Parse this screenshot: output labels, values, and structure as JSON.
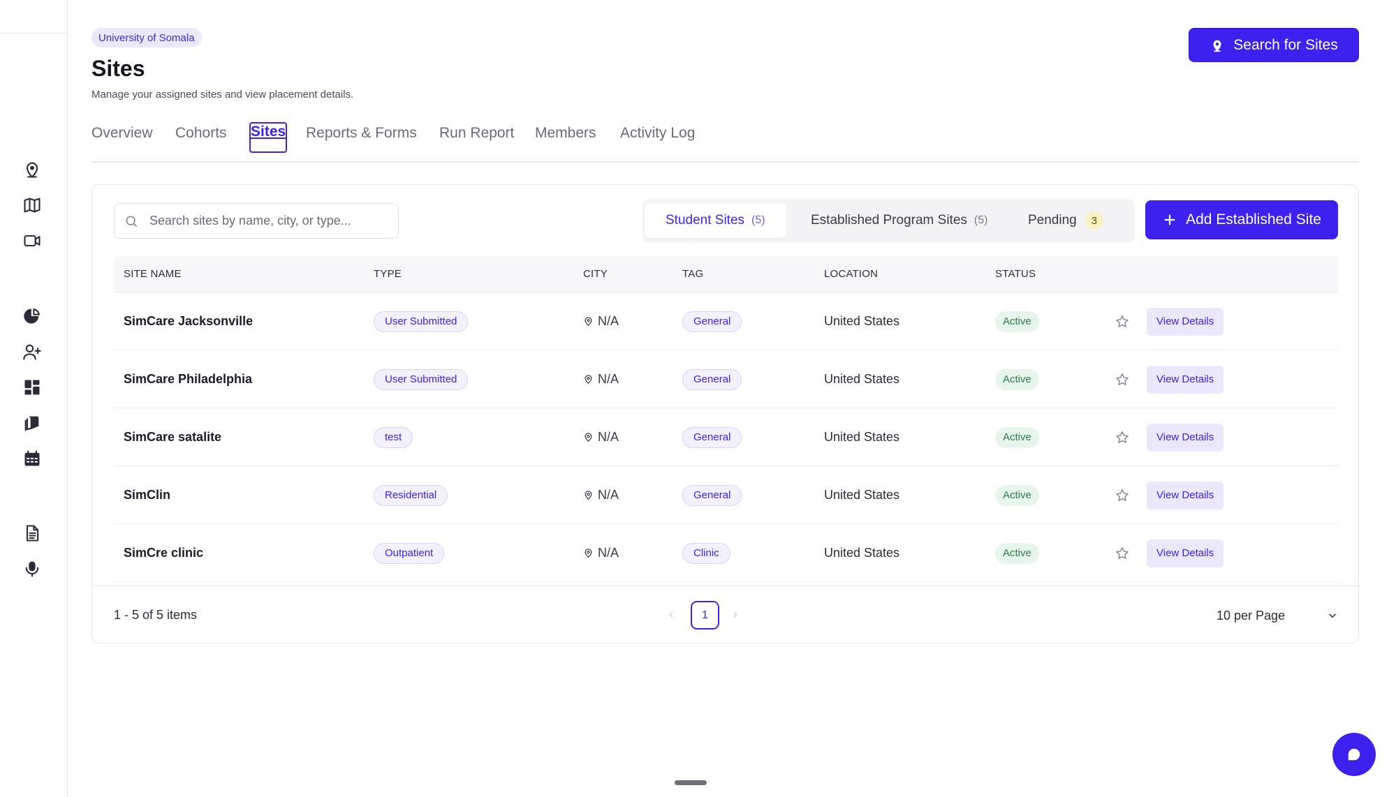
{
  "header": {
    "org_badge": "University of Somala",
    "title": "Sites",
    "subtitle": "Manage your assigned sites and view placement details.",
    "search_sites_label": "Search for Sites"
  },
  "tabs": [
    {
      "label": "Overview"
    },
    {
      "label": "Cohorts"
    },
    {
      "label": "Sites",
      "active": true
    },
    {
      "label": "Reports & Forms"
    },
    {
      "label": "Run Report"
    },
    {
      "label": "Members"
    },
    {
      "label": "Activity Log"
    }
  ],
  "toolbar": {
    "search_placeholder": "Search sites by name, city, or type...",
    "segments": [
      {
        "label": "Student Sites",
        "count": "(5)",
        "active": true
      },
      {
        "label": "Established Program Sites",
        "count": "(5)"
      },
      {
        "label": "Pending",
        "badge": "3"
      }
    ],
    "add_button_label": "Add Established Site"
  },
  "table": {
    "columns": [
      "SITE NAME",
      "TYPE",
      "CITY",
      "TAG",
      "LOCATION",
      "STATUS"
    ],
    "rows": [
      {
        "name": "SimCare Jacksonville",
        "type": "User Submitted",
        "city": "N/A",
        "tag": "General",
        "location": "United States",
        "status": "Active",
        "action": "View Details"
      },
      {
        "name": "SimCare Philadelphia",
        "type": "User Submitted",
        "city": "N/A",
        "tag": "General",
        "location": "United States",
        "status": "Active",
        "action": "View Details"
      },
      {
        "name": "SimCare satalite",
        "type": "test",
        "city": "N/A",
        "tag": "General",
        "location": "United States",
        "status": "Active",
        "action": "View Details"
      },
      {
        "name": "SimClin",
        "type": "Residential",
        "city": "N/A",
        "tag": "General",
        "location": "United States",
        "status": "Active",
        "action": "View Details"
      },
      {
        "name": "SimCre clinic",
        "type": "Outpatient",
        "city": "N/A",
        "tag": "Clinic",
        "location": "United States",
        "status": "Active",
        "action": "View Details"
      }
    ]
  },
  "pagination": {
    "items_label": "1 - 5 of 5 items",
    "prev": "‹",
    "next": "›",
    "current_page": "1",
    "per_page": "10 per Page"
  },
  "colors": {
    "accent": "#3c21ef",
    "status_active_bg": "#e6f6ec",
    "status_active_text": "#2f7a4a"
  },
  "icons": {
    "sidebar": [
      "location-pin-icon",
      "map-icon",
      "video-camera-icon",
      "pie-chart-icon",
      "add-user-icon",
      "dashboard-grid-icon",
      "stacked-books-icon",
      "calendar-icon",
      "document-icon",
      "microphone-icon"
    ]
  }
}
